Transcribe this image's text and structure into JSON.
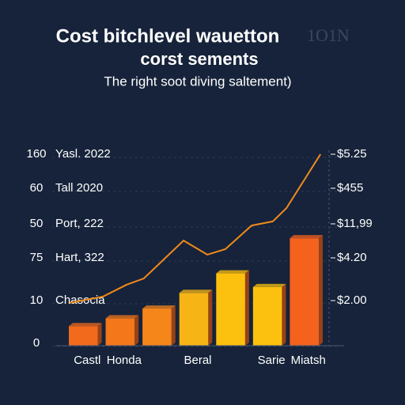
{
  "chart_data": {
    "type": "bar",
    "title": "Cost bitchlevel wauetton",
    "title_suffix": "1O1N",
    "subtitle": "corst sements",
    "caption": "The right soot diving saltement)",
    "left_labels": [
      {
        "tick": "160",
        "text": "Yasl. 2022"
      },
      {
        "tick": "60",
        "text": "Tall 2020"
      },
      {
        "tick": "50",
        "text": "Port, 222"
      },
      {
        "tick": "75",
        "text": "Hart, 322"
      },
      {
        "tick": "10",
        "text": "Chasocia"
      },
      {
        "tick": "0"
      }
    ],
    "right_labels": [
      "$5.25",
      "$455",
      "$11,99",
      "$4.20",
      "$2.00"
    ],
    "categories": [
      "Castl",
      "Honda",
      null,
      "Beral",
      null,
      "Sarie",
      "Miatsh"
    ],
    "values": [
      10,
      14,
      19,
      27,
      37,
      30,
      55
    ],
    "colors": [
      "#f26a1b",
      "#f4771a",
      "#f5861a",
      "#f7b515",
      "#fcc10e",
      "#fcc10e",
      "#f4621e"
    ],
    "ylim": [
      0,
      100
    ],
    "line": {
      "color": "#f08a1c",
      "xlim": [
        0,
        100
      ],
      "x": [
        0.6,
        13.5,
        22.7,
        29.4,
        44.8,
        54,
        61,
        71.2,
        79.4,
        84.7,
        97.9
      ],
      "values": [
        21.9,
        25.1,
        31.2,
        34.4,
        53.8,
        46.6,
        49.4,
        61.5,
        63.6,
        70.4,
        98
      ]
    }
  }
}
